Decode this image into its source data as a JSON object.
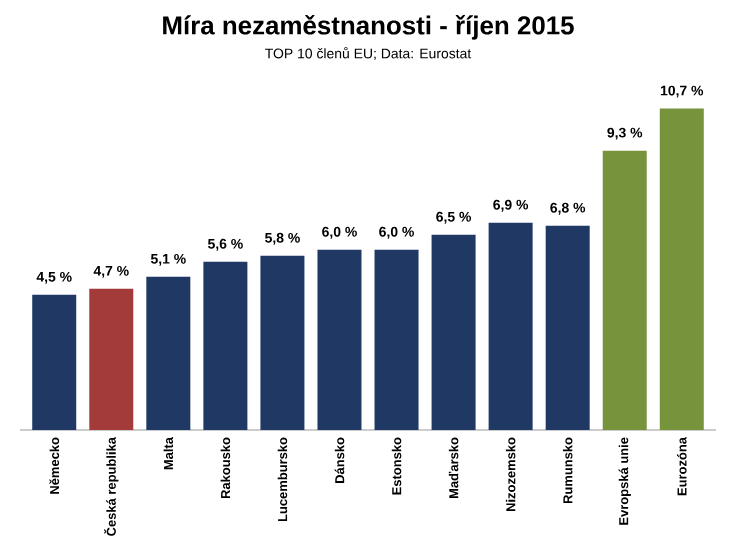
{
  "chart_data": {
    "type": "bar",
    "title": "Míra nezaměstnanosti - říjen 2015",
    "subtitle": "TOP 10 členů EU; Data: Eurostat",
    "categories": [
      "Německo",
      "Česká republika",
      "Malta",
      "Rakousko",
      "Lucembursko",
      "Dánsko",
      "Estonsko",
      "Maďarsko",
      "Nizozemsko",
      "Rumunsko",
      "Evropská unie",
      "Eurozóna"
    ],
    "values": [
      4.5,
      4.7,
      5.1,
      5.6,
      5.8,
      6.0,
      6.0,
      6.5,
      6.9,
      6.8,
      9.3,
      10.7
    ],
    "value_labels": [
      "4,5 %",
      "4,7 %",
      "5,1 %",
      "5,6 %",
      "5,8 %",
      "6,0 %",
      "6,0 %",
      "6,5 %",
      "6,9 %",
      "6,8 %",
      "9,3 %",
      "10,7 %"
    ],
    "colors": [
      "#1f3864",
      "#a33b3b",
      "#1f3864",
      "#1f3864",
      "#1f3864",
      "#1f3864",
      "#1f3864",
      "#1f3864",
      "#1f3864",
      "#1f3864",
      "#77933c",
      "#77933c"
    ],
    "tick_labels": "x"
  }
}
